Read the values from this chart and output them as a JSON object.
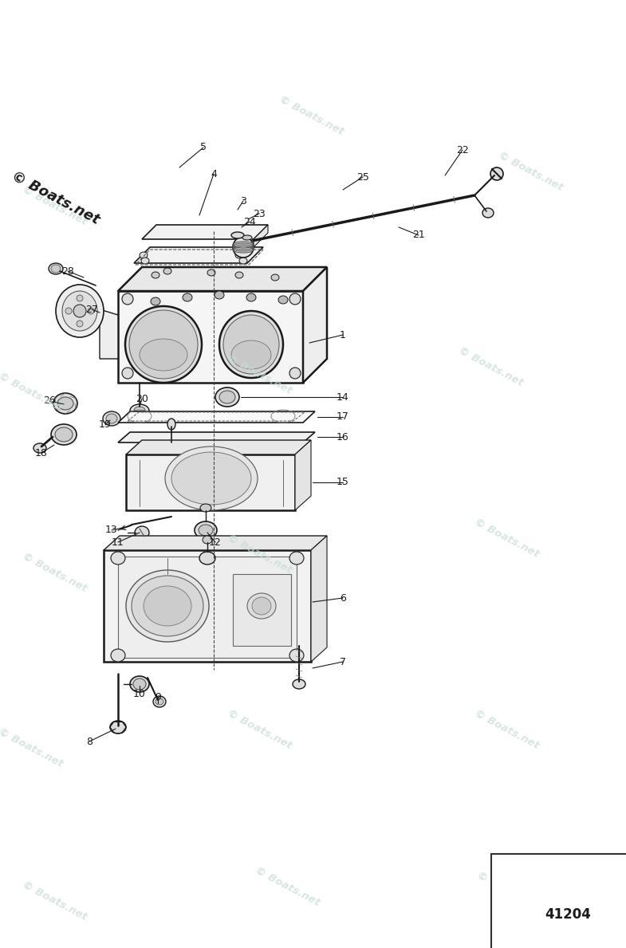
{
  "background_color": "#ffffff",
  "watermark_text": "© Boats.net",
  "part_number": "41204",
  "diagram_color": "#1a1a1a",
  "wm_color": "#c8dbd8",
  "wm_alpha": 0.7
}
